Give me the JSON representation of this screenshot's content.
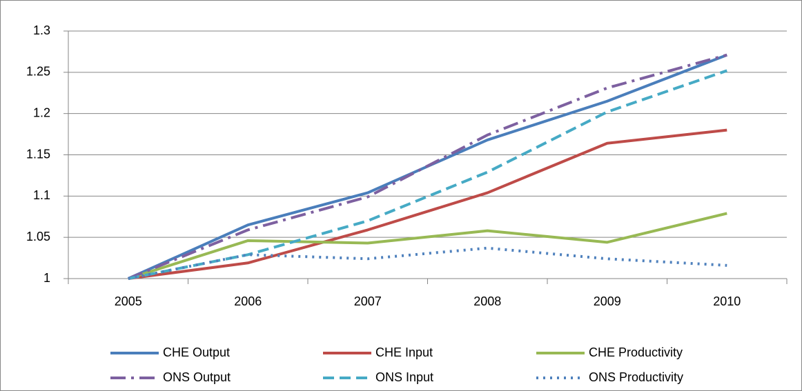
{
  "chart_data": {
    "type": "line",
    "categories": [
      "2005",
      "2006",
      "2007",
      "2008",
      "2009",
      "2010"
    ],
    "series": [
      {
        "name": "CHE Output",
        "color": "#4a7ebb",
        "style": "solid",
        "values": [
          1.0,
          1.065,
          1.104,
          1.168,
          1.215,
          1.271
        ]
      },
      {
        "name": "CHE Input",
        "color": "#be4b48",
        "style": "solid",
        "values": [
          1.0,
          1.019,
          1.059,
          1.104,
          1.164,
          1.18
        ]
      },
      {
        "name": "CHE Productivity",
        "color": "#98b954",
        "style": "solid",
        "values": [
          1.0,
          1.046,
          1.043,
          1.058,
          1.044,
          1.079
        ]
      },
      {
        "name": "ONS Output",
        "color": "#7d60a0",
        "style": "dashdot",
        "values": [
          1.0,
          1.059,
          1.099,
          1.174,
          1.231,
          1.271
        ]
      },
      {
        "name": "ONS Input",
        "color": "#46aac5",
        "style": "dashed",
        "values": [
          1.0,
          1.029,
          1.07,
          1.129,
          1.202,
          1.252
        ]
      },
      {
        "name": "ONS Productivity",
        "color": "#4f81bd",
        "style": "dotted",
        "values": [
          1.0,
          1.029,
          1.024,
          1.037,
          1.024,
          1.016
        ]
      }
    ],
    "ylim": [
      1,
      1.3
    ],
    "yticks": [
      1,
      1.05,
      1.1,
      1.15,
      1.2,
      1.25,
      1.3
    ],
    "grid": true,
    "legend": "bottom"
  }
}
